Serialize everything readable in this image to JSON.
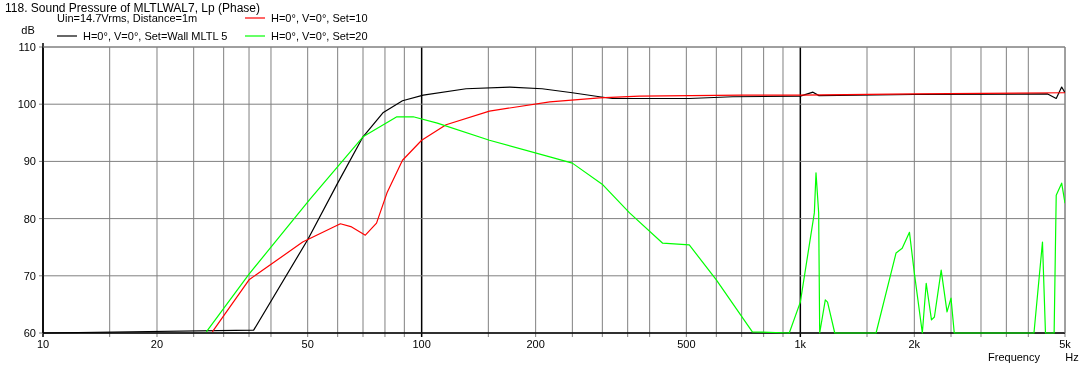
{
  "chart_data": {
    "type": "line",
    "title": "118. Sound Pressure of MLTLWAL7, Lp (Phase)",
    "xlabel": "Frequency",
    "ylabel": "dB",
    "annotations": [
      "Uin=14.7Vrms, Distance=1m",
      "Hz"
    ],
    "log": "x",
    "grid": true,
    "legend": "top left",
    "line_style": "solid",
    "marker": "none",
    "xlim": [
      10,
      5000
    ],
    "ylim": [
      60,
      110
    ],
    "xticks": [
      10,
      {
        "value": 15,
        "label": null
      },
      20,
      {
        "value": 25,
        "label": null
      },
      {
        "value": 30,
        "label": null
      },
      {
        "value": 35,
        "label": null
      },
      {
        "value": 40,
        "label": null
      },
      50,
      {
        "value": 60,
        "label": null
      },
      {
        "value": 70,
        "label": null
      },
      {
        "value": 80,
        "label": null
      },
      {
        "value": 90,
        "label": null
      },
      100,
      {
        "value": 150,
        "label": null
      },
      200,
      {
        "value": 250,
        "label": null
      },
      {
        "value": 300,
        "label": null
      },
      {
        "value": 350,
        "label": null
      },
      {
        "value": 400,
        "label": null
      },
      500,
      {
        "value": 600,
        "label": null
      },
      {
        "value": 700,
        "label": null
      },
      {
        "value": 800,
        "label": null
      },
      {
        "value": 900,
        "label": null
      },
      {
        "value": 1000,
        "label": "1k"
      },
      {
        "value": 1500,
        "label": null
      },
      {
        "value": 2000,
        "label": "2k"
      },
      {
        "value": 2500,
        "label": null
      },
      {
        "value": 3000,
        "label": null
      },
      {
        "value": 3500,
        "label": null
      },
      {
        "value": 4000,
        "label": null
      },
      {
        "value": 5000,
        "label": "5k"
      }
    ],
    "yticks": [
      60,
      70,
      80,
      90,
      100,
      110
    ],
    "series": [
      {
        "name": "H=0°, V=0°, Set=Wall MLTL 5",
        "color": "#000000",
        "x": [
          10,
          36,
          50,
          60,
          70,
          79,
          89,
          101,
          131,
          171,
          208,
          250,
          295,
          319,
          509,
          662,
          1000,
          1080,
          1120,
          2000,
          4500,
          4740,
          4900,
          5000
        ],
        "values": [
          60,
          60.5,
          76.3,
          86.2,
          94.3,
          98.5,
          100.6,
          101.6,
          102.7,
          103.0,
          102.7,
          102.0,
          101.3,
          101.0,
          101.0,
          101.3,
          101.4,
          102.1,
          101.5,
          101.7,
          101.8,
          101.0,
          103.0,
          102.0
        ]
      },
      {
        "name": "H=0°, V=0°, Set=10",
        "color": "#ff0000",
        "x": [
          28,
          35,
          48.5,
          61,
          65,
          71,
          76,
          81,
          89,
          100,
          116,
          151,
          218,
          295,
          376,
          700,
          1000,
          2000,
          5000
        ],
        "values": [
          60.2,
          69.3,
          75.9,
          79.1,
          78.6,
          77.1,
          79.2,
          84.5,
          90.2,
          93.7,
          96.4,
          98.8,
          100.4,
          101.1,
          101.4,
          101.6,
          101.6,
          101.8,
          102
        ]
      },
      {
        "name": "H=0°, V=0°, Set=20",
        "color": "#00ff00",
        "x": [
          27,
          35,
          50.6,
          70,
          86,
          95,
          110,
          151,
          218,
          250,
          301,
          354,
          433,
          509,
          600,
          747,
          935,
          1000,
          1089,
          1100,
          1118,
          1125,
          1164,
          1180,
          1233,
          1585,
          1790,
          1858,
          1942,
          2000,
          2100,
          2150,
          2220,
          2260,
          2355,
          2440,
          2500,
          2550,
          4140,
          4360,
          4440,
          4680,
          4740,
          4900,
          5000
        ],
        "values": [
          60.2,
          70.3,
          83.3,
          94.3,
          97.8,
          97.8,
          96.7,
          93.7,
          90.8,
          89.7,
          85.9,
          81.0,
          75.7,
          75.4,
          69.3,
          60.2,
          60,
          65.4,
          81,
          88,
          81,
          60,
          65.8,
          65.4,
          60,
          60,
          74,
          74.8,
          77.6,
          70.5,
          60,
          68.7,
          62.3,
          62.8,
          71,
          63.7,
          66.1,
          60,
          60,
          75.9,
          60,
          60,
          84.1,
          86.2,
          82.7
        ]
      }
    ]
  }
}
